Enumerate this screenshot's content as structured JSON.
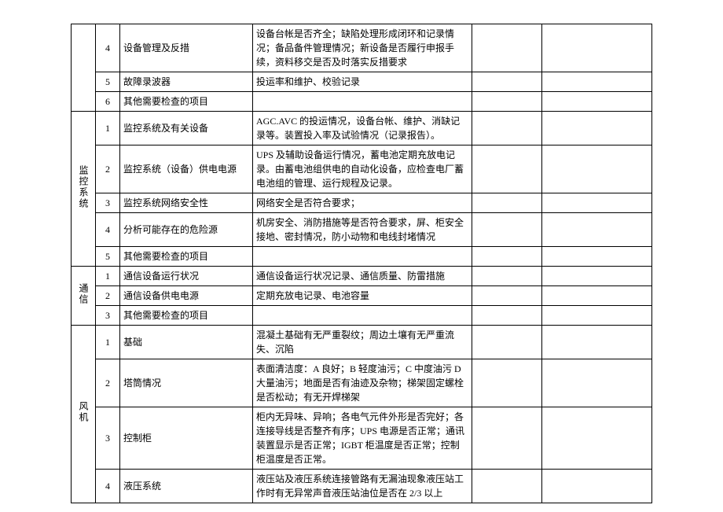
{
  "groups": [
    {
      "label": "",
      "rows": [
        {
          "num": "4",
          "item": "设备管理及反措",
          "desc": "设备台帐是否齐全；缺陷处理形成闭环和记录情况；备品备件管理情况；新设备是否履行申报手续，资料移交是否及时落实反措要求"
        },
        {
          "num": "5",
          "item": "故障录波器",
          "desc": "投运率和维护、校验记录"
        },
        {
          "num": "6",
          "item": "其他需要检查的项目",
          "desc": ""
        }
      ]
    },
    {
      "label": "监控系统",
      "rows": [
        {
          "num": "1",
          "item": "监控系统及有关设备",
          "desc": "AGC.AVC 的投运情况，设备台帐、维护、消缺记录等。装置投入率及试验情况（记录报告）。"
        },
        {
          "num": "2",
          "item": "监控系统（设备）供电电源",
          "desc": "UPS 及辅助设备运行情况，蓄电池定期充放电记录。由蓄电池组供电的自动化设备，应检查电厂蓄电池组的管理、运行规程及记录。"
        },
        {
          "num": "3",
          "item": "监控系统网络安全性",
          "desc": "网络安全是否符合要求；"
        },
        {
          "num": "4",
          "item": "分析可能存在的危险源",
          "desc": "机房安全、消防措施等是否符合要求，屏、柜安全接地、密封情况，防小动物和电线封堵情况"
        },
        {
          "num": "5",
          "item": "其他需要检查的项目",
          "desc": ""
        }
      ]
    },
    {
      "label": "通信",
      "rows": [
        {
          "num": "1",
          "item": "通信设备运行状况",
          "desc": "通信设备运行状况记录、通信质量、防雷措施"
        },
        {
          "num": "2",
          "item": "通信设备供电电源",
          "desc": "定期充放电记录、电池容量"
        },
        {
          "num": "3",
          "item": "其他需要检查的项目",
          "desc": ""
        }
      ]
    },
    {
      "label": "风机",
      "rows": [
        {
          "num": "1",
          "item": "基础",
          "desc": "混凝土基础有无严重裂纹；周边土壤有无严重流失、沉陷"
        },
        {
          "num": "2",
          "item": "塔筒情况",
          "desc": "表面清洁度：A 良好；B 轻度油污；C 中度油污 D 大量油污；地面是否有油迹及杂物；梯架固定螺栓是否松动；有无开焊梯架"
        },
        {
          "num": "3",
          "item": "控制柜",
          "desc": "柜内无异味、异响；各电气元件外形是否完好；各连接导线是否整齐有序；UPS 电源是否正常；通讯装置显示是否正常；IGBT 柜温度是否正常；控制柜温度是否正常。"
        },
        {
          "num": "4",
          "item": "液压系统",
          "desc": "液压站及液压系统连接管路有无漏油现象液压站工作时有无异常声音液压站油位是否在 2/3 以上"
        }
      ]
    }
  ]
}
